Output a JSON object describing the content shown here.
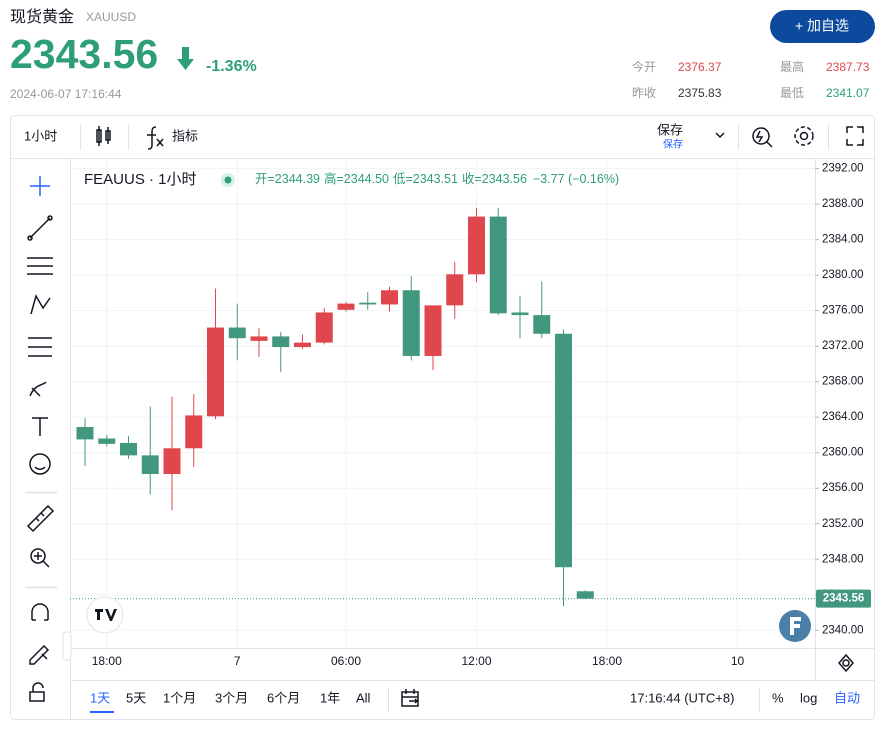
{
  "header": {
    "title": "现货黄金",
    "symbol": "XAUUSD",
    "price": "2343.56",
    "change": "-1.36%",
    "datetime": "2024-06-07 17:16:44",
    "button": "+ 加自选",
    "stats": [
      {
        "label": "今开",
        "value": "2376.37"
      },
      {
        "label": "最高",
        "value": "2387.73"
      },
      {
        "label": "昨收",
        "value": "2375.83"
      },
      {
        "label": "最低",
        "value": "2341.07"
      }
    ]
  },
  "toolbar": {
    "interval": "1小时",
    "indicators": "指标",
    "save": "保存",
    "save_sub": "保存"
  },
  "chart_data": {
    "type": "candlestick",
    "title": "FEAUUS · 1小时",
    "legend_items": [
      "开=2344.39",
      "高=2344.50",
      "低=2343.51",
      "收=2343.56"
    ],
    "legend_change": "−3.77 (−0.16%)",
    "open": [
      2362.9,
      2361.6,
      2361.1,
      2359.7,
      2357.6,
      2360.5,
      2364.1,
      2374.1,
      2372.6,
      2373.1,
      2371.9,
      2372.4,
      2376.1,
      2376.9,
      2376.7,
      2378.3,
      2370.9,
      2376.6,
      2380.1,
      2386.6,
      2375.8,
      2375.5,
      2373.4,
      2344.39
    ],
    "high": [
      2363.9,
      2362.0,
      2361.9,
      2365.2,
      2366.3,
      2366.6,
      2378.5,
      2376.8,
      2374.0,
      2373.6,
      2373.3,
      2376.3,
      2377.0,
      2378.1,
      2378.7,
      2379.9,
      2376.6,
      2381.5,
      2387.6,
      2387.6,
      2377.7,
      2379.3,
      2373.9,
      2344.5
    ],
    "low": [
      2358.5,
      2360.7,
      2359.3,
      2355.3,
      2353.5,
      2358.4,
      2363.8,
      2370.4,
      2370.8,
      2369.1,
      2371.7,
      2372.2,
      2375.9,
      2376.1,
      2375.9,
      2370.4,
      2369.3,
      2375.1,
      2379.2,
      2375.5,
      2372.9,
      2372.9,
      2342.7,
      2343.51
    ],
    "close": [
      2361.5,
      2361.0,
      2359.7,
      2357.6,
      2360.5,
      2364.2,
      2374.1,
      2372.9,
      2373.1,
      2371.9,
      2372.4,
      2375.8,
      2376.8,
      2376.7,
      2378.3,
      2370.9,
      2376.6,
      2380.1,
      2386.6,
      2375.7,
      2375.5,
      2373.4,
      2347.1,
      2343.56
    ],
    "up_color": "#e0474c",
    "down_color": "#42977f",
    "ylim": [
      2338,
      2393.2
    ],
    "yticks": [
      {
        "value": 2340,
        "label": "2340.00"
      },
      {
        "value": 2344,
        "label": "2344.00"
      },
      {
        "value": 2348,
        "label": "2348.00"
      },
      {
        "value": 2352,
        "label": "2352.00"
      },
      {
        "value": 2356,
        "label": "2356.00"
      },
      {
        "value": 2360,
        "label": "2360.00"
      },
      {
        "value": 2364,
        "label": "2364.00"
      },
      {
        "value": 2368,
        "label": "2368.00"
      },
      {
        "value": 2372,
        "label": "2372.00"
      },
      {
        "value": 2376,
        "label": "2376.00"
      },
      {
        "value": 2380,
        "label": "2380.00"
      },
      {
        "value": 2384,
        "label": "2384.00"
      },
      {
        "value": 2388,
        "label": "2388.00"
      },
      {
        "value": 2392,
        "label": "2392.00"
      }
    ],
    "x_tick_labels": [
      "18:00",
      "7",
      "06:00",
      "12:00",
      "18:00",
      "10"
    ],
    "last_price": 2343.56,
    "grid": true
  },
  "bottom_bar": {
    "ranges": [
      "1天",
      "5天",
      "1个月",
      "3个月",
      "6个月",
      "1年",
      "All"
    ],
    "time": "17:16:44 (UTC+8)",
    "percent": "%",
    "log": "log",
    "auto": "自动"
  }
}
